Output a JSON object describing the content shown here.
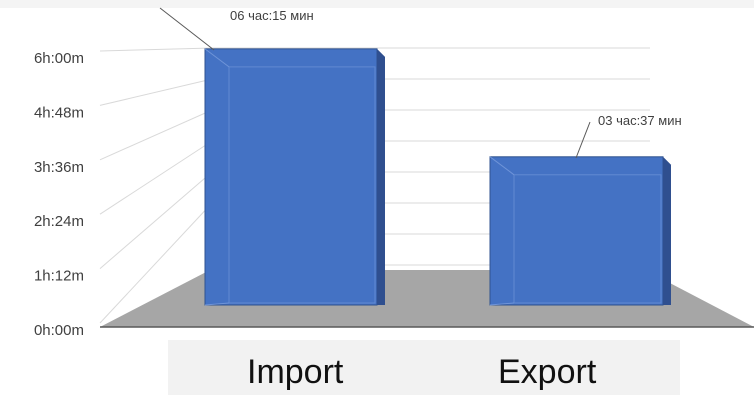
{
  "colors": {
    "bar_front": "#4472c4",
    "bar_side": "#2f4f8f",
    "bar_top": "#5b86d6",
    "floor": "#a6a6a6",
    "gridline": "#d9d9d9",
    "axis_text": "#404040",
    "panel": "#f2f2f2"
  },
  "chart_data": {
    "type": "bar",
    "style": "3d-column",
    "categories": [
      "Import",
      "Export"
    ],
    "values_minutes": [
      375,
      217
    ],
    "data_labels": [
      "06 час:15 мин",
      "03 час:37 мин"
    ],
    "ytick_labels": [
      "0h:00m",
      "1h:12m",
      "2h:24m",
      "3h:36m",
      "4h:48m",
      "6h:00m"
    ],
    "ytick_values_minutes": [
      0,
      72,
      144,
      216,
      288,
      360
    ],
    "ylim_minutes": [
      0,
      396
    ],
    "grid": true,
    "legend": "none"
  }
}
